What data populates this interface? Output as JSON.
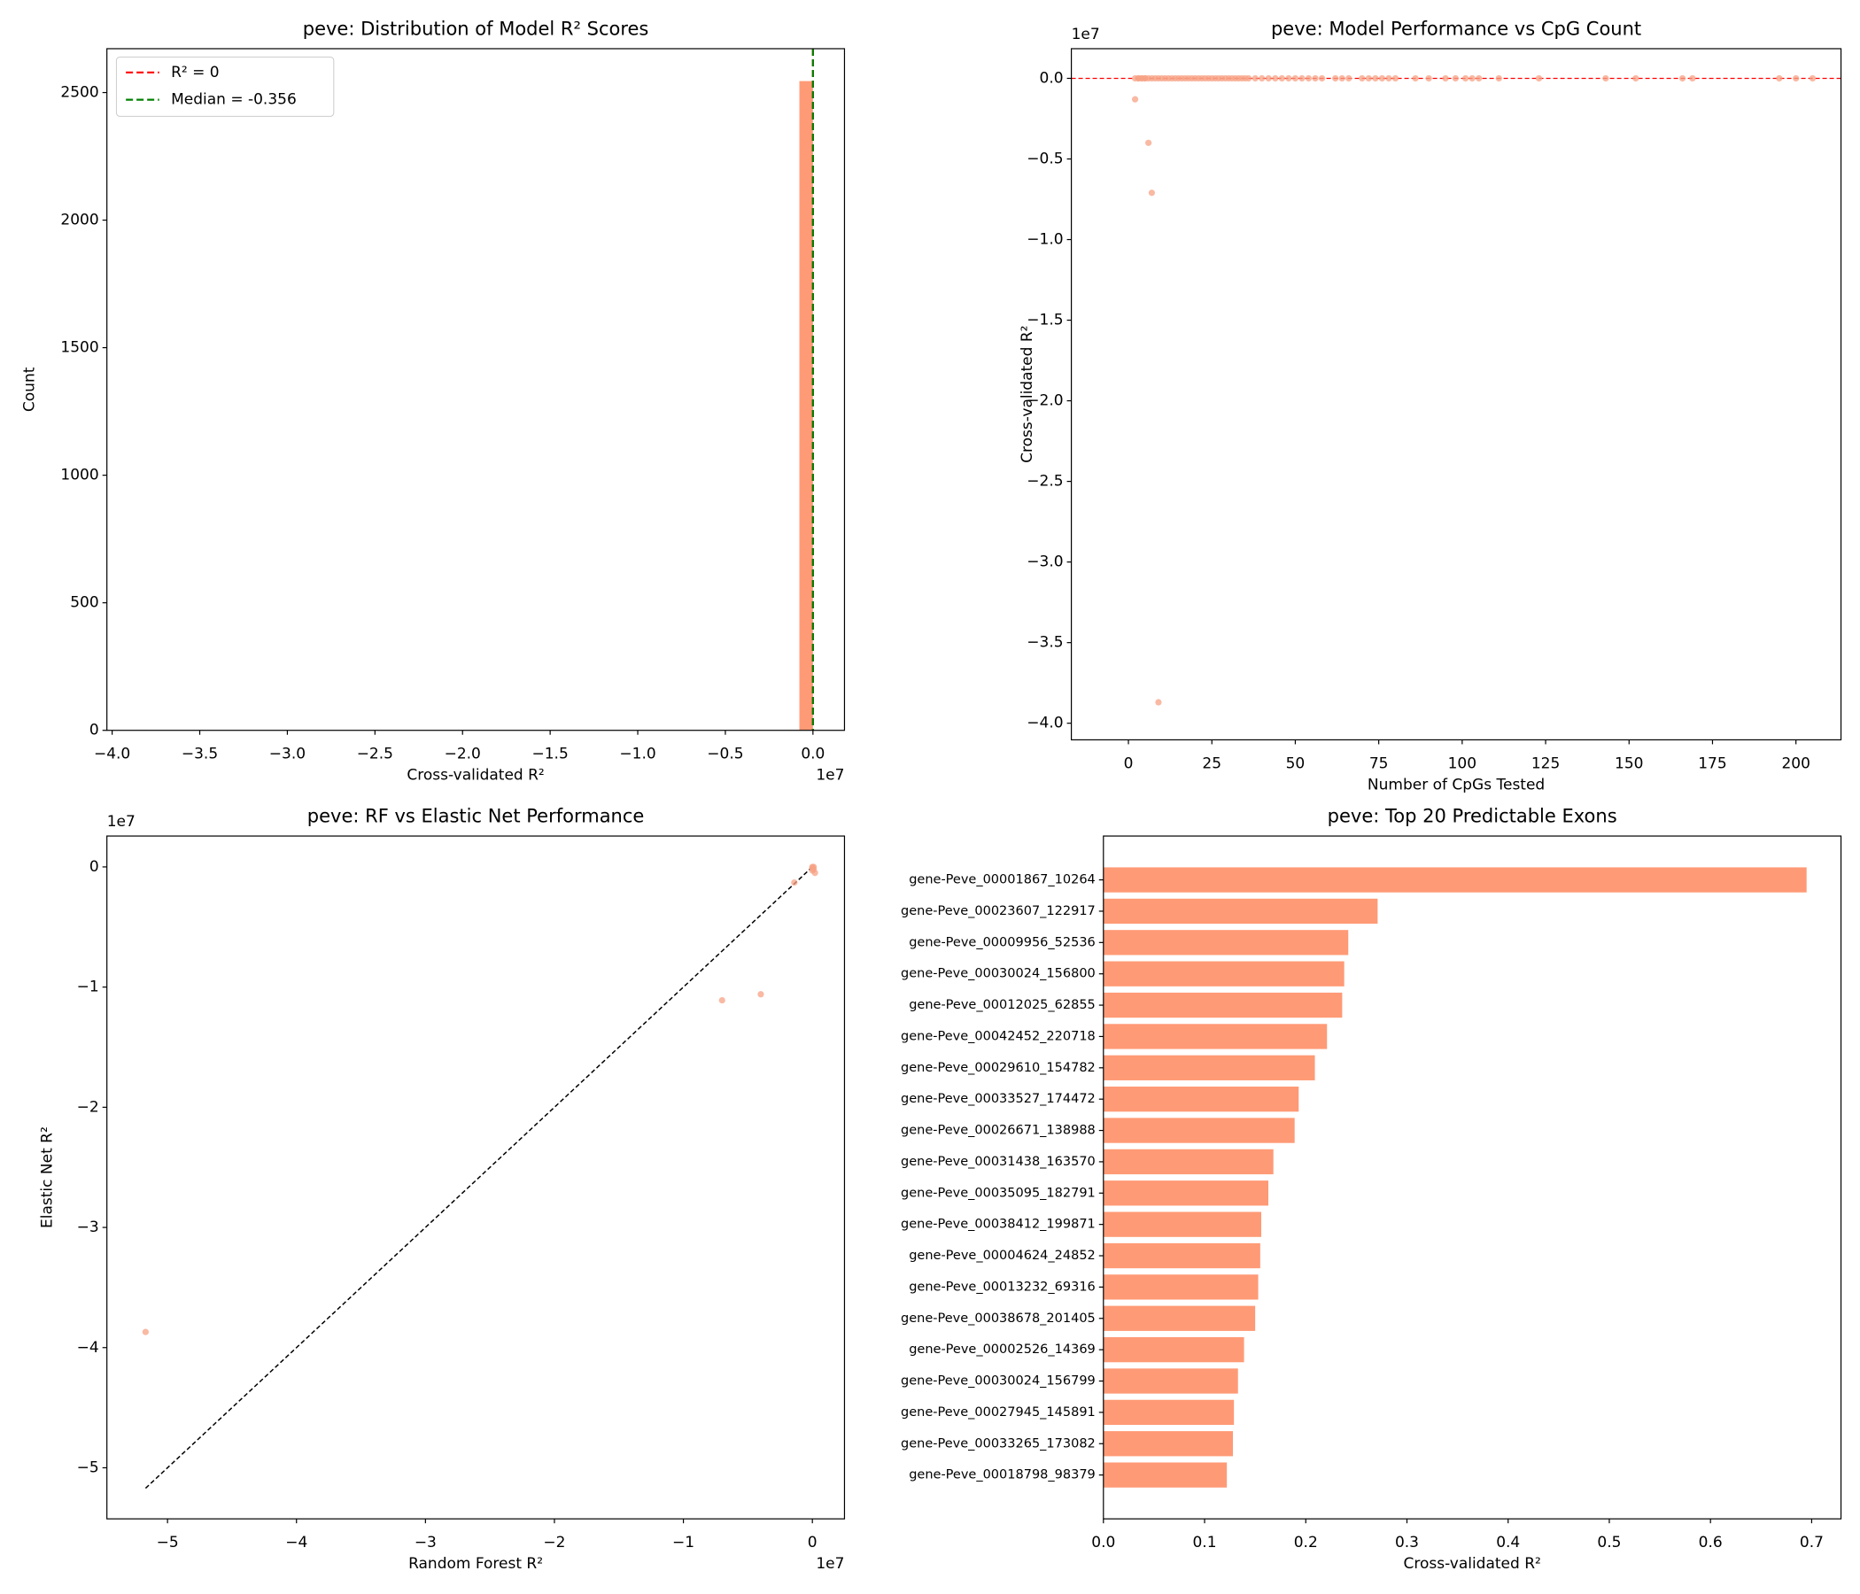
{
  "chart_data": [
    {
      "type": "histogram",
      "title": "peve: Distribution of Model R² Scores",
      "xlabel": "Cross-validated R²",
      "ylabel": "Count",
      "x_offset_label": "1e7",
      "color": "#ff9a76",
      "bins": [
        -3.87,
        -3.7926,
        -3.7152,
        -3.6378,
        -3.5604,
        -3.483,
        -3.4056,
        -3.3282,
        -3.2508,
        -3.1734,
        -3.096,
        -3.0186,
        -2.9412,
        -2.8638,
        -2.7864,
        -2.709,
        -2.6316,
        -2.5542,
        -2.4768,
        -2.3994,
        -2.322,
        -2.2446,
        -2.1672,
        -2.0898,
        -2.0124,
        -1.935,
        -1.8576,
        -1.7802,
        -1.7028,
        -1.6254,
        -1.548,
        -1.4706,
        -1.3932,
        -1.3158,
        -1.2384,
        -1.161,
        -1.0836,
        -1.0062,
        -0.9288,
        -0.8514,
        -0.774,
        -0.6966,
        -0.6192,
        -0.5418,
        -0.4644,
        -0.387,
        -0.3096,
        -0.2322,
        -0.1548,
        -0.0774,
        0
      ],
      "counts": [
        1,
        0,
        0,
        0,
        0,
        0,
        0,
        0,
        0,
        0,
        0,
        0,
        0,
        0,
        0,
        0,
        0,
        0,
        0,
        0,
        0,
        0,
        0,
        0,
        0,
        0,
        0,
        0,
        0,
        0,
        0,
        0,
        0,
        0,
        0,
        0,
        0,
        0,
        0,
        0,
        1,
        0,
        0,
        0,
        1,
        0,
        0,
        0,
        1,
        2545
      ],
      "vlines": [
        {
          "name": "R² = 0",
          "value": 0,
          "color": "#ff0000"
        },
        {
          "name": "Median = -0.356",
          "value": -3.56e-08,
          "color": "#008000"
        }
      ],
      "legend": "upper left",
      "xlim": [
        -4.03,
        0.18
      ],
      "ylim": [
        0,
        2672
      ],
      "xticks": [
        {
          "value": -4,
          "label": "−4.0"
        },
        {
          "value": -3.5,
          "label": "−3.5"
        },
        {
          "value": -3,
          "label": "−3.0"
        },
        {
          "value": -2.5,
          "label": "−2.5"
        },
        {
          "value": -2,
          "label": "−2.0"
        },
        {
          "value": -1.5,
          "label": "−1.5"
        },
        {
          "value": -1,
          "label": "−1.0"
        },
        {
          "value": -0.5,
          "label": "−0.5"
        },
        {
          "value": 0,
          "label": "0.0"
        }
      ],
      "yticks": [
        0,
        500,
        1000,
        1500,
        2000,
        2500
      ]
    },
    {
      "type": "scatter",
      "title": "peve: Model Performance vs CpG Count",
      "xlabel": "Number of CpGs Tested",
      "ylabel": "Cross-validated R²",
      "y_offset_label": "1e7",
      "color": "#f7a184",
      "x": [
        2,
        6,
        7,
        9,
        2,
        3,
        3,
        4,
        4,
        5,
        5,
        6,
        7,
        8,
        9,
        10,
        11,
        12,
        13,
        14,
        15,
        16,
        17,
        18,
        19,
        20,
        21,
        22,
        23,
        24,
        25,
        26,
        27,
        28,
        29,
        30,
        31,
        32,
        33,
        34,
        35,
        36,
        38,
        40,
        42,
        44,
        46,
        48,
        50,
        52,
        54,
        56,
        58,
        62,
        64,
        66,
        70,
        72,
        74,
        76,
        78,
        80,
        86,
        90,
        95,
        98,
        101,
        103,
        105,
        111,
        123,
        143,
        152,
        166,
        169,
        195,
        200,
        205
      ],
      "y": [
        -0.13,
        -0.4,
        -0.71,
        -3.87,
        0,
        0,
        0,
        0,
        0,
        0,
        0,
        0,
        0,
        0,
        0,
        0,
        0,
        0,
        0,
        0,
        0,
        0,
        0,
        0,
        0,
        0,
        0,
        0,
        0,
        0,
        0,
        0,
        0,
        0,
        0,
        0,
        0,
        0,
        0,
        0,
        0,
        0,
        0,
        0,
        0,
        0,
        0,
        0,
        0,
        0,
        0,
        0,
        0,
        0,
        0,
        0,
        0,
        0,
        0,
        0,
        0,
        0,
        0,
        0,
        0,
        0,
        0,
        0,
        0,
        0,
        0,
        0,
        0,
        0,
        0,
        0,
        0,
        0
      ],
      "hline": {
        "value": 0,
        "color": "#ff0000"
      },
      "xlim": [
        -17.1,
        213.5
      ],
      "ylim": [
        -4.103,
        0.184
      ],
      "xticks": [
        0,
        25,
        50,
        75,
        100,
        125,
        150,
        175,
        200
      ],
      "yticks": [
        {
          "value": 0,
          "label": "0.0"
        },
        {
          "value": -0.5,
          "label": "−0.5"
        },
        {
          "value": -1,
          "label": "−1.0"
        },
        {
          "value": -1.5,
          "label": "−1.5"
        },
        {
          "value": -2,
          "label": "−2.0"
        },
        {
          "value": -2.5,
          "label": "−2.5"
        },
        {
          "value": -3,
          "label": "−3.0"
        },
        {
          "value": -3.5,
          "label": "−3.5"
        },
        {
          "value": -4,
          "label": "−4.0"
        }
      ]
    },
    {
      "type": "scatter",
      "title": "peve: RF vs Elastic Net Performance",
      "xlabel": "Random Forest R²",
      "ylabel": "Elastic Net R²",
      "x_offset_label": "1e7",
      "y_offset_label": "1e7",
      "color": "#f7a184",
      "x": [
        -5.17,
        -0.7,
        -0.4,
        -0.14,
        0,
        0.01,
        0.02,
        0,
        0.01,
        0
      ],
      "y": [
        -3.87,
        -1.11,
        -1.06,
        -0.13,
        0,
        -0.02,
        -0.05,
        -0.01,
        0,
        -0.03
      ],
      "ref_line": {
        "x": [
          -5.17,
          0
        ],
        "y": [
          -5.17,
          0
        ],
        "color": "#000000"
      },
      "xlim": [
        -5.47,
        0.249
      ],
      "ylim": [
        -5.425,
        0.257
      ],
      "xticks": [
        {
          "value": -5,
          "label": "−5"
        },
        {
          "value": -4,
          "label": "−4"
        },
        {
          "value": -3,
          "label": "−3"
        },
        {
          "value": -2,
          "label": "−2"
        },
        {
          "value": -1,
          "label": "−1"
        },
        0
      ],
      "yticks": [
        0,
        {
          "value": -1,
          "label": "−1"
        },
        {
          "value": -2,
          "label": "−2"
        },
        {
          "value": -3,
          "label": "−3"
        },
        {
          "value": -4,
          "label": "−4"
        },
        {
          "value": -5,
          "label": "−5"
        }
      ]
    },
    {
      "type": "barh",
      "title": "peve: Top 20 Predictable Exons",
      "xlabel": "Cross-validated R²",
      "color": "#ff9a76",
      "categories": [
        "gene-Peve_00001867_10264",
        "gene-Peve_00023607_122917",
        "gene-Peve_00009956_52536",
        "gene-Peve_00030024_156800",
        "gene-Peve_00012025_62855",
        "gene-Peve_00042452_220718",
        "gene-Peve_00029610_154782",
        "gene-Peve_00033527_174472",
        "gene-Peve_00026671_138988",
        "gene-Peve_00031438_163570",
        "gene-Peve_00035095_182791",
        "gene-Peve_00038412_199871",
        "gene-Peve_00004624_24852",
        "gene-Peve_00013232_69316",
        "gene-Peve_00038678_201405",
        "gene-Peve_00002526_14369",
        "gene-Peve_00030024_156799",
        "gene-Peve_00027945_145891",
        "gene-Peve_00033265_173082",
        "gene-Peve_00018798_98379"
      ],
      "values": [
        0.695,
        0.271,
        0.242,
        0.238,
        0.236,
        0.221,
        0.209,
        0.193,
        0.189,
        0.168,
        0.163,
        0.156,
        0.155,
        0.153,
        0.15,
        0.139,
        0.133,
        0.129,
        0.128,
        0.122
      ],
      "xlim": [
        0,
        0.729
      ],
      "xticks": [
        {
          "value": 0,
          "label": "0.0"
        },
        {
          "value": 0.1,
          "label": "0.1"
        },
        {
          "value": 0.2,
          "label": "0.2"
        },
        {
          "value": 0.3,
          "label": "0.3"
        },
        {
          "value": 0.4,
          "label": "0.4"
        },
        {
          "value": 0.5,
          "label": "0.5"
        },
        {
          "value": 0.6,
          "label": "0.6"
        },
        {
          "value": 0.7,
          "label": "0.7"
        }
      ]
    }
  ]
}
